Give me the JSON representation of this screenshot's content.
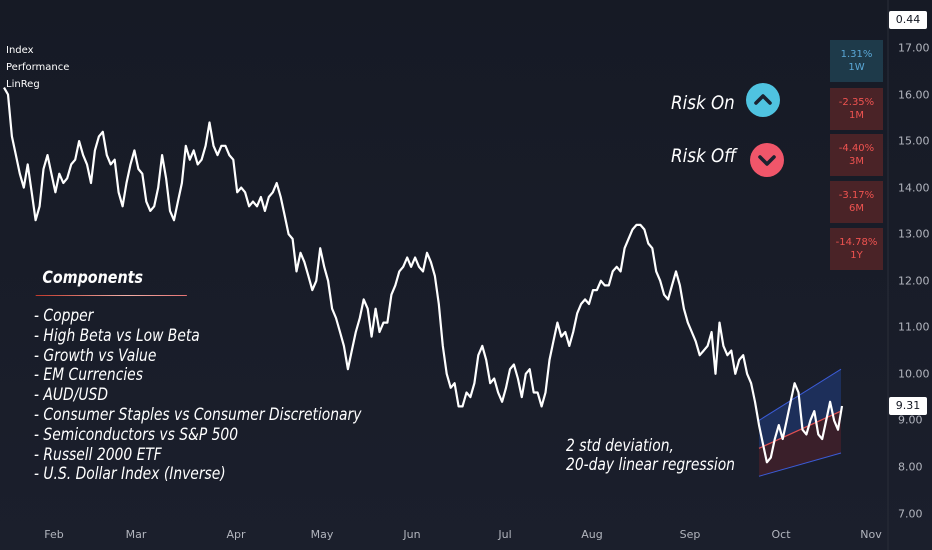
{
  "legend": {
    "line1": "Index",
    "line2": "Performance",
    "line3": "LinReg"
  },
  "risk": {
    "on_label": "Risk On",
    "off_label": "Risk Off",
    "on_color": "#4fc3e0",
    "off_color": "#f0566a"
  },
  "components": {
    "title": "Components",
    "items": [
      "- Copper",
      "- High Beta vs Low Beta",
      "- Growth vs Value",
      "- EM Currencies",
      "- AUD/USD",
      "- Consumer Staples vs Consumer Discretionary",
      "- Semiconductors vs S&P 500",
      "- Russell 2000 ETF",
      "- U.S. Dollar Index (Inverse)"
    ]
  },
  "note": {
    "line1": "2 std deviation,",
    "line2": "20-day linear regression"
  },
  "performance": [
    {
      "value": "1.31%",
      "period": "1W",
      "sign": "pos"
    },
    {
      "value": "-2.35%",
      "period": "1M",
      "sign": "neg"
    },
    {
      "value": "-4.40%",
      "period": "3M",
      "sign": "neg"
    },
    {
      "value": "-3.17%",
      "period": "6M",
      "sign": "neg"
    },
    {
      "value": "-14.78%",
      "period": "1Y",
      "sign": "neg"
    }
  ],
  "price_tags": {
    "top": "0.44",
    "last": "9.31"
  },
  "chart_data": {
    "type": "line",
    "title": "",
    "xlabel": "",
    "ylabel": "",
    "ylim": [
      7.0,
      17.3
    ],
    "y_ticks": [
      "17.00",
      "16.00",
      "15.00",
      "14.00",
      "13.00",
      "12.00",
      "11.00",
      "10.00",
      "9.00",
      "8.00",
      "7.00"
    ],
    "x_ticks": [
      "Feb",
      "Mar",
      "Apr",
      "May",
      "Jun",
      "Jul",
      "Aug",
      "Sep",
      "Oct",
      "Nov"
    ],
    "line_color": "#ffffff",
    "grid": false,
    "series": [
      {
        "values": [
          16.15,
          16.0,
          15.1,
          14.7,
          14.3,
          14.0,
          14.5,
          13.9,
          13.3,
          13.6,
          14.4,
          14.7,
          14.3,
          13.9,
          14.3,
          14.1,
          14.2,
          14.5,
          14.6,
          15.0,
          14.7,
          14.5,
          14.1,
          14.8,
          15.1,
          15.2,
          14.7,
          14.5,
          14.6,
          13.9,
          13.6,
          14.1,
          14.5,
          14.8,
          14.4,
          14.3,
          13.7,
          13.5,
          13.6,
          14.0,
          14.7,
          14.2,
          13.5,
          13.3,
          13.7,
          14.1,
          14.9,
          14.6,
          14.8,
          14.5,
          14.6,
          14.9,
          15.4,
          14.9,
          14.7,
          14.9,
          14.9,
          14.7,
          14.6,
          13.9,
          14.0,
          13.9,
          13.6,
          13.7,
          13.6,
          13.8,
          13.5,
          13.8,
          13.9,
          14.1,
          13.8,
          13.4,
          13.0,
          12.9,
          12.2,
          12.6,
          12.4,
          12.1,
          11.8,
          12.0,
          12.7,
          12.3,
          12.0,
          11.4,
          11.2,
          10.9,
          10.6,
          10.1,
          10.5,
          10.9,
          11.2,
          11.6,
          11.4,
          10.8,
          11.4,
          10.9,
          11.1,
          11.1,
          11.7,
          11.9,
          12.2,
          12.3,
          12.5,
          12.3,
          12.5,
          12.3,
          12.2,
          12.6,
          12.4,
          12.1,
          11.5,
          10.6,
          10.0,
          9.7,
          9.8,
          9.3,
          9.3,
          9.6,
          9.5,
          9.8,
          10.4,
          10.6,
          10.3,
          9.8,
          9.9,
          9.6,
          9.4,
          9.7,
          10.1,
          10.2,
          9.9,
          9.5,
          10.0,
          10.1,
          9.6,
          9.6,
          9.3,
          9.6,
          10.3,
          10.7,
          11.1,
          10.8,
          10.9,
          10.6,
          10.9,
          11.3,
          11.5,
          11.6,
          11.5,
          11.8,
          11.8,
          12.0,
          11.9,
          11.9,
          12.2,
          12.3,
          12.2,
          12.7,
          12.9,
          13.1,
          13.2,
          13.2,
          13.1,
          12.8,
          12.7,
          12.2,
          12.0,
          11.7,
          11.6,
          11.9,
          12.2,
          11.9,
          11.4,
          11.1,
          10.9,
          10.7,
          10.4,
          10.5,
          10.6,
          10.9,
          10.0,
          11.1,
          10.6,
          10.4,
          10.5,
          10.0,
          10.3,
          10.4,
          10.0,
          9.8,
          9.4,
          8.9,
          8.5,
          8.1,
          8.2,
          8.6,
          8.9,
          8.6,
          9.0,
          9.4,
          9.8,
          9.6,
          8.8,
          8.7,
          9.0,
          9.2,
          8.7,
          8.6,
          9.0,
          9.4,
          9.0,
          8.8,
          9.31
        ]
      }
    ],
    "regression_band": {
      "lower": {
        "start": 7.8,
        "end": 8.3
      },
      "middle": {
        "start": 8.4,
        "end": 9.2
      },
      "upper": {
        "start": 9.0,
        "end": 10.1
      },
      "upper_color": "#1e3263",
      "lower_color": "#3e1f2a",
      "middle_color": "#e05050"
    }
  }
}
